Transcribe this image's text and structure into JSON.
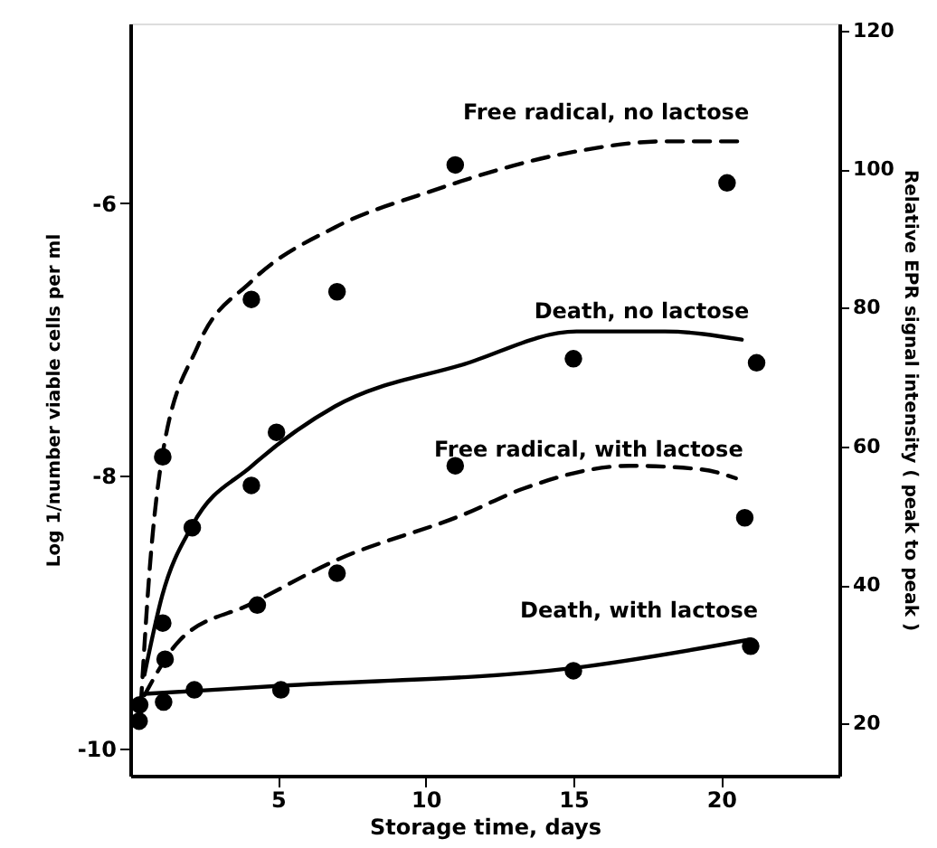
{
  "chart_data": {
    "type": "scatter",
    "xlabel": "Storage time, days",
    "ylabel": "Log 1/number viable cells per ml",
    "y2label": "Relative EPR signal intensity ( peak to peak )",
    "xlim": [
      0,
      24
    ],
    "xticks": [
      5,
      10,
      15,
      20
    ],
    "ylim": [
      -10.2,
      -4.68
    ],
    "yticks": [
      {
        "value": -6,
        "label": "-6"
      },
      {
        "value": -8,
        "label": "-8"
      },
      {
        "value": -10,
        "label": "-10"
      }
    ],
    "y2lim": [
      12.5,
      121
    ],
    "y2ticks": [
      20,
      40,
      60,
      80,
      100,
      120
    ],
    "grid": false,
    "marker": "circle",
    "series": [
      {
        "type": "line",
        "name": "Free radical, no lactose",
        "axis": "y2",
        "color": "#000000",
        "line_style": "dashed",
        "marker": "none",
        "x": [
          0.36,
          0.66,
          1.08,
          2.29,
          4.1,
          6.93,
          10.1,
          14.9,
          18.1,
          20.7
        ],
        "values": [
          22.8,
          42.4,
          58.5,
          74.5,
          83.8,
          91.6,
          96.7,
          102.4,
          104.0,
          104.0
        ]
      },
      {
        "type": "line",
        "name": "Death, no lactose",
        "axis": "y",
        "color": "#000000",
        "line_style": "solid",
        "marker": "none",
        "x": [
          0.48,
          1.08,
          2.11,
          4.1,
          6.93,
          11.3,
          15.1,
          18.1,
          20.7
        ],
        "values": [
          -9.46,
          -8.88,
          -8.36,
          -7.93,
          -7.49,
          -7.18,
          -6.94,
          -6.94,
          -7.0
        ]
      },
      {
        "type": "line",
        "name": "Free radical, with lactose",
        "axis": "y2",
        "color": "#000000",
        "line_style": "dashed",
        "marker": "none",
        "x": [
          0.48,
          1.69,
          4.1,
          6.93,
          11.3,
          13.3,
          16.9,
          19.3,
          20.5
        ],
        "values": [
          24.1,
          32.1,
          37.3,
          43.5,
          50.2,
          53.9,
          57.2,
          56.7,
          55.4
        ]
      },
      {
        "type": "line",
        "name": "Death, with lactose",
        "axis": "y",
        "color": "#000000",
        "line_style": "solid",
        "marker": "none",
        "x": [
          0.48,
          5.1,
          15.0,
          21.0
        ],
        "values": [
          -9.6,
          -9.54,
          -9.41,
          -9.2
        ]
      },
      {
        "axis": "y2",
        "color": "#000000",
        "x": [
          1.1,
          4.1,
          7.0,
          11.0,
          20.2
        ],
        "values": [
          58.5,
          81.2,
          82.3,
          100.6,
          98.0
        ]
      },
      {
        "axis": "y",
        "color": "#000000",
        "x": [
          0.3,
          1.1,
          2.1,
          4.1,
          4.95,
          15.0,
          21.2
        ],
        "values": [
          -9.8,
          -9.08,
          -8.38,
          -8.07,
          -7.68,
          -7.14,
          -7.17
        ]
      },
      {
        "axis": "y2",
        "color": "#000000",
        "x": [
          1.18,
          4.3,
          7.0,
          11.0,
          20.8
        ],
        "values": [
          29.3,
          37.1,
          41.7,
          57.2,
          49.7
        ]
      },
      {
        "axis": "y",
        "color": "#000000",
        "x": [
          0.32,
          1.13,
          2.17,
          5.1,
          15.0,
          21.0
        ],
        "values": [
          -9.68,
          -9.66,
          -9.57,
          -9.57,
          -9.43,
          -9.25
        ]
      }
    ]
  }
}
